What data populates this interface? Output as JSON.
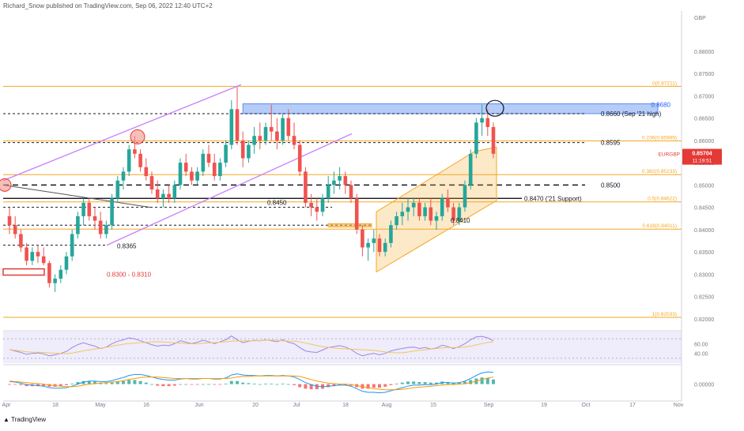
{
  "header": {
    "attribution": "Richard_Snow published on TradingView.com, Sep 06, 2022 12:40 UTC+2"
  },
  "brand": {
    "name": "TradingView"
  },
  "colors": {
    "up": "#26a69a",
    "down": "#ef5350",
    "fib": "#f5a623",
    "channel_purple": "#c77dff",
    "resistance_zone": "#5b8def",
    "rsi": "#9c88e0",
    "macd": "#2196f3",
    "signal": "#ff9800"
  },
  "chart_data": {
    "type": "candlestick",
    "symbol": "EURGBP",
    "currency_label": "GBP",
    "last_price_label": "0.85704",
    "countdown_label": "11:19:51",
    "ylim": [
      0.8175,
      0.889
    ],
    "y_ticks": [
      "0.88000",
      "0.87500",
      "0.87000",
      "0.86500",
      "0.86000",
      "0.85500",
      "0.85000",
      "0.84500",
      "0.84000",
      "0.83500",
      "0.83000",
      "0.82500",
      "0.82000"
    ],
    "x_ticks": [
      "Apr",
      "18",
      "May",
      "16",
      "Jun",
      "20",
      "Jul",
      "18",
      "Aug",
      "15",
      "Sep",
      "19",
      "Oct",
      "17",
      "Nov"
    ],
    "candles": [
      [
        0.843,
        0.845,
        0.839,
        0.841
      ],
      [
        0.841,
        0.843,
        0.838,
        0.839
      ],
      [
        0.839,
        0.84,
        0.835,
        0.836
      ],
      [
        0.836,
        0.837,
        0.832,
        0.833
      ],
      [
        0.833,
        0.836,
        0.832,
        0.835
      ],
      [
        0.835,
        0.8365,
        0.8325,
        0.834
      ],
      [
        0.834,
        0.836,
        0.832,
        0.8325
      ],
      [
        0.8325,
        0.833,
        0.827,
        0.828
      ],
      [
        0.828,
        0.83,
        0.826,
        0.829
      ],
      [
        0.829,
        0.832,
        0.828,
        0.831
      ],
      [
        0.831,
        0.835,
        0.83,
        0.834
      ],
      [
        0.834,
        0.84,
        0.833,
        0.839
      ],
      [
        0.839,
        0.844,
        0.838,
        0.843
      ],
      [
        0.843,
        0.847,
        0.841,
        0.846
      ],
      [
        0.846,
        0.847,
        0.842,
        0.843
      ],
      [
        0.843,
        0.845,
        0.84,
        0.842
      ],
      [
        0.842,
        0.844,
        0.838,
        0.839
      ],
      [
        0.839,
        0.842,
        0.838,
        0.841
      ],
      [
        0.841,
        0.848,
        0.84,
        0.847
      ],
      [
        0.847,
        0.852,
        0.846,
        0.851
      ],
      [
        0.851,
        0.854,
        0.849,
        0.853
      ],
      [
        0.853,
        0.859,
        0.852,
        0.858
      ],
      [
        0.858,
        0.861,
        0.856,
        0.857
      ],
      [
        0.857,
        0.858,
        0.853,
        0.854
      ],
      [
        0.854,
        0.856,
        0.851,
        0.852
      ],
      [
        0.852,
        0.853,
        0.848,
        0.849
      ],
      [
        0.849,
        0.851,
        0.846,
        0.847
      ],
      [
        0.847,
        0.849,
        0.845,
        0.848
      ],
      [
        0.848,
        0.85,
        0.846,
        0.847
      ],
      [
        0.847,
        0.851,
        0.846,
        0.85
      ],
      [
        0.85,
        0.856,
        0.849,
        0.855
      ],
      [
        0.855,
        0.857,
        0.852,
        0.853
      ],
      [
        0.853,
        0.854,
        0.85,
        0.851
      ],
      [
        0.851,
        0.854,
        0.85,
        0.853
      ],
      [
        0.853,
        0.858,
        0.852,
        0.857
      ],
      [
        0.857,
        0.859,
        0.854,
        0.855
      ],
      [
        0.855,
        0.857,
        0.851,
        0.852
      ],
      [
        0.852,
        0.856,
        0.851,
        0.855
      ],
      [
        0.855,
        0.86,
        0.854,
        0.859
      ],
      [
        0.859,
        0.869,
        0.858,
        0.867
      ],
      [
        0.867,
        0.872,
        0.859,
        0.86
      ],
      [
        0.86,
        0.862,
        0.854,
        0.856
      ],
      [
        0.856,
        0.86,
        0.855,
        0.859
      ],
      [
        0.859,
        0.863,
        0.857,
        0.861
      ],
      [
        0.861,
        0.864,
        0.858,
        0.86
      ],
      [
        0.86,
        0.864,
        0.859,
        0.863
      ],
      [
        0.863,
        0.868,
        0.86,
        0.862
      ],
      [
        0.862,
        0.865,
        0.858,
        0.86
      ],
      [
        0.86,
        0.866,
        0.859,
        0.865
      ],
      [
        0.865,
        0.867,
        0.86,
        0.861
      ],
      [
        0.861,
        0.864,
        0.858,
        0.859
      ],
      [
        0.859,
        0.86,
        0.852,
        0.853
      ],
      [
        0.853,
        0.854,
        0.845,
        0.846
      ],
      [
        0.846,
        0.848,
        0.843,
        0.845
      ],
      [
        0.845,
        0.847,
        0.842,
        0.844
      ],
      [
        0.844,
        0.848,
        0.843,
        0.847
      ],
      [
        0.847,
        0.852,
        0.846,
        0.85
      ],
      [
        0.85,
        0.853,
        0.848,
        0.851
      ],
      [
        0.851,
        0.854,
        0.849,
        0.852
      ],
      [
        0.852,
        0.853,
        0.848,
        0.85
      ],
      [
        0.85,
        0.851,
        0.846,
        0.847
      ],
      [
        0.847,
        0.848,
        0.839,
        0.84
      ],
      [
        0.84,
        0.841,
        0.834,
        0.836
      ],
      [
        0.836,
        0.838,
        0.833,
        0.837
      ],
      [
        0.837,
        0.84,
        0.835,
        0.838
      ],
      [
        0.838,
        0.839,
        0.834,
        0.835
      ],
      [
        0.835,
        0.838,
        0.834,
        0.837
      ],
      [
        0.837,
        0.842,
        0.836,
        0.841
      ],
      [
        0.841,
        0.844,
        0.84,
        0.843
      ],
      [
        0.843,
        0.846,
        0.841,
        0.844
      ],
      [
        0.844,
        0.847,
        0.842,
        0.845
      ],
      [
        0.845,
        0.847,
        0.843,
        0.846
      ],
      [
        0.846,
        0.847,
        0.842,
        0.843
      ],
      [
        0.843,
        0.846,
        0.842,
        0.845
      ],
      [
        0.845,
        0.847,
        0.841,
        0.842
      ],
      [
        0.842,
        0.844,
        0.84,
        0.843
      ],
      [
        0.843,
        0.848,
        0.842,
        0.847
      ],
      [
        0.847,
        0.849,
        0.844,
        0.845
      ],
      [
        0.845,
        0.846,
        0.841,
        0.842
      ],
      [
        0.842,
        0.846,
        0.841,
        0.845
      ],
      [
        0.845,
        0.851,
        0.844,
        0.85
      ],
      [
        0.85,
        0.858,
        0.849,
        0.857
      ],
      [
        0.857,
        0.865,
        0.856,
        0.864
      ],
      [
        0.864,
        0.868,
        0.861,
        0.865
      ],
      [
        0.865,
        0.867,
        0.861,
        0.863
      ],
      [
        0.863,
        0.864,
        0.856,
        0.857
      ]
    ],
    "fib_levels": [
      {
        "label": "0(0.87211)",
        "value": 0.87211
      },
      {
        "label": "0.236(0.85989)",
        "value": 0.85989
      },
      {
        "label": "0.382(0.85233)",
        "value": 0.85233
      },
      {
        "label": "0.5(0.84622)",
        "value": 0.84622
      },
      {
        "label": "0.618(0.84011)",
        "value": 0.84011
      },
      {
        "label": "1(0.82033)",
        "value": 0.82033
      }
    ],
    "annotations": [
      {
        "text": "0.8680",
        "value": 0.868,
        "color": "#2962ff"
      },
      {
        "text": "0.8660 (Sep '21 high)",
        "value": 0.866,
        "color": "#131722"
      },
      {
        "text": "0.8595",
        "value": 0.8595,
        "color": "#131722"
      },
      {
        "text": "0.8500",
        "value": 0.85,
        "color": "#131722"
      },
      {
        "text": "0.8470 ('21 Support)",
        "value": 0.847,
        "color": "#131722"
      },
      {
        "text": "0.8450",
        "value": 0.845,
        "color": "#131722"
      },
      {
        "text": "0.8410",
        "value": 0.841,
        "color": "#131722"
      },
      {
        "text": "0.8365",
        "value": 0.8365,
        "color": "#131722"
      },
      {
        "text": "0.8300 - 0.8310",
        "value": 0.83,
        "color": "#e53935"
      }
    ],
    "rsi": {
      "ticks": [
        "60.00",
        "40.00"
      ],
      "ylim": [
        20,
        85
      ],
      "values": [
        48,
        45,
        42,
        38,
        40,
        41,
        39,
        35,
        37,
        40,
        44,
        52,
        58,
        62,
        58,
        55,
        50,
        53,
        60,
        65,
        68,
        72,
        70,
        66,
        62,
        58,
        55,
        57,
        56,
        60,
        66,
        63,
        60,
        63,
        67,
        64,
        60,
        64,
        68,
        76,
        68,
        62,
        65,
        67,
        66,
        68,
        66,
        64,
        68,
        63,
        60,
        52,
        45,
        43,
        42,
        47,
        52,
        54,
        56,
        53,
        48,
        40,
        35,
        38,
        40,
        37,
        40,
        45,
        48,
        50,
        52,
        53,
        50,
        52,
        49,
        51,
        57,
        54,
        50,
        54,
        60,
        68,
        74,
        75,
        72,
        66
      ]
    },
    "macd": {
      "ticks": [
        "0.00000"
      ],
      "ylim": [
        -0.003,
        0.0035
      ],
      "macd": [
        0.0005,
        0.0004,
        0.0002,
        -0.0001,
        -0.0002,
        -0.0003,
        -0.0004,
        -0.0007,
        -0.0008,
        -0.0008,
        -0.0007,
        -0.0004,
        0.0,
        0.0004,
        0.0006,
        0.0006,
        0.0005,
        0.0005,
        0.0007,
        0.001,
        0.0013,
        0.0017,
        0.0019,
        0.0019,
        0.0017,
        0.0014,
        0.0011,
        0.0009,
        0.0008,
        0.0008,
        0.001,
        0.0011,
        0.001,
        0.001,
        0.0011,
        0.0011,
        0.001,
        0.001,
        0.0012,
        0.0018,
        0.002,
        0.0018,
        0.0017,
        0.0017,
        0.0016,
        0.0017,
        0.0017,
        0.0016,
        0.0017,
        0.0016,
        0.0014,
        0.0009,
        0.0003,
        -0.0001,
        -0.0004,
        -0.0005,
        -0.0004,
        -0.0003,
        -0.0002,
        -0.0002,
        -0.0004,
        -0.0009,
        -0.0014,
        -0.0016,
        -0.0016,
        -0.0017,
        -0.0016,
        -0.0013,
        -0.001,
        -0.0007,
        -0.0004,
        -0.0002,
        -0.0002,
        -0.0001,
        -0.0001,
        0.0,
        0.0003,
        0.0003,
        0.0002,
        0.0003,
        0.0006,
        0.0011,
        0.0017,
        0.0022,
        0.0024,
        0.0023
      ],
      "signal": [
        0.0006,
        0.0005,
        0.0004,
        0.0003,
        0.0002,
        0.0001,
        0.0,
        -0.0002,
        -0.0003,
        -0.0004,
        -0.0005,
        -0.0005,
        -0.0004,
        -0.0002,
        0.0,
        0.0001,
        0.0002,
        0.0003,
        0.0004,
        0.0005,
        0.0007,
        0.0009,
        0.0011,
        0.0013,
        0.0014,
        0.0014,
        0.0014,
        0.0013,
        0.0012,
        0.0011,
        0.0011,
        0.0011,
        0.0011,
        0.0011,
        0.0011,
        0.0011,
        0.0011,
        0.0011,
        0.0011,
        0.0012,
        0.0014,
        0.0015,
        0.0015,
        0.0016,
        0.0016,
        0.0016,
        0.0016,
        0.0016,
        0.0016,
        0.0016,
        0.0016,
        0.0015,
        0.0012,
        0.0009,
        0.0006,
        0.0004,
        0.0002,
        0.0001,
        0.0,
        0.0,
        -0.0001,
        -0.0003,
        -0.0005,
        -0.0007,
        -0.0009,
        -0.001,
        -0.0011,
        -0.0011,
        -0.0011,
        -0.001,
        -0.0009,
        -0.0007,
        -0.0006,
        -0.0005,
        -0.0004,
        -0.0003,
        -0.0002,
        -0.0001,
        -0.0001,
        0.0,
        0.0001,
        0.0003,
        0.0006,
        0.0009,
        0.0012,
        0.0014
      ]
    }
  }
}
